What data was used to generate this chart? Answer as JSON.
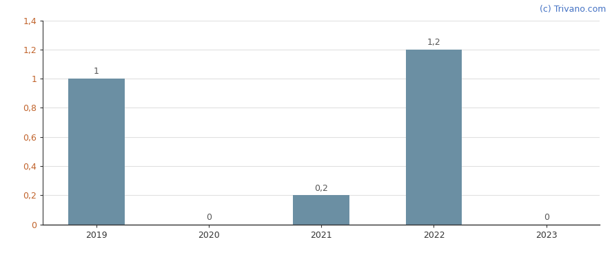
{
  "categories": [
    "2019",
    "2020",
    "2021",
    "2022",
    "2023"
  ],
  "values": [
    1.0,
    0.0,
    0.2,
    1.2,
    0.0
  ],
  "bar_color": "#6b8fa3",
  "ylim": [
    0,
    1.4
  ],
  "yticks": [
    0,
    0.2,
    0.4,
    0.6,
    0.8,
    1.0,
    1.2,
    1.4
  ],
  "ytick_labels": [
    "0",
    "0,2",
    "0,4",
    "0,6",
    "0,8",
    "1",
    "1,2",
    "1,4"
  ],
  "bar_labels": [
    "1",
    "0",
    "0,2",
    "1,2",
    "0"
  ],
  "watermark": "(c) Trivano.com",
  "watermark_color": "#4472c4",
  "ytick_color": "#c0622a",
  "background_color": "#ffffff",
  "bar_width": 0.5,
  "label_fontsize": 9,
  "tick_fontsize": 9,
  "watermark_fontsize": 9,
  "grid_color": "#e0e0e0",
  "spine_color": "#333333",
  "label_color": "#555555"
}
